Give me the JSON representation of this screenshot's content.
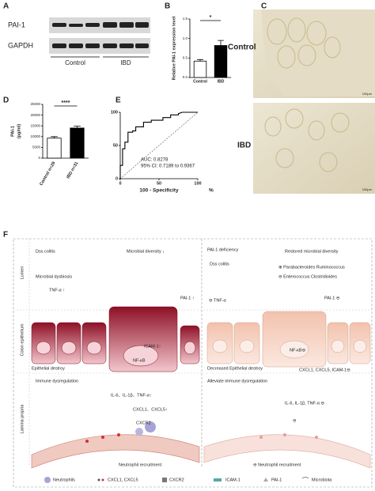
{
  "panel_a": {
    "label": "A",
    "rows": [
      "PAI-1",
      "GAPDH"
    ],
    "groups": [
      "Control",
      "IBD"
    ]
  },
  "panel_b": {
    "label": "B"
  },
  "panel_c": {
    "label": "C",
    "groups": [
      "Control",
      "IBD"
    ],
    "scale": "100μm"
  },
  "panel_d": {
    "label": "D"
  },
  "panel_e": {
    "label": "E"
  },
  "chart_data": [
    {
      "type": "bar",
      "ylabel": "Relative PAI-1 expression level",
      "categories": [
        "Control",
        "IBD"
      ],
      "values": [
        0.42,
        0.82
      ],
      "errors": [
        0.04,
        0.13
      ],
      "colors": [
        "#ffffff",
        "#000000"
      ],
      "ylim": [
        0,
        1.5
      ],
      "yticks": [
        {
          "value": 0,
          "label": "0.0"
        },
        {
          "value": 0.5,
          "label": "0.5"
        },
        {
          "value": 1,
          "label": "1.0"
        },
        {
          "value": 1.5,
          "label": "1.5"
        }
      ],
      "annotation": "*"
    },
    {
      "type": "bar",
      "ylabel": [
        "PAI-1",
        "(pg/ml)"
      ],
      "categories": [
        "Control n=29",
        "IBD n=31"
      ],
      "values": [
        9300,
        14000
      ],
      "errors": [
        700,
        900
      ],
      "colors": [
        "#ffffff",
        "#000000"
      ],
      "ylim": [
        0,
        25000
      ],
      "yticks": [
        0,
        5000,
        10000,
        15000,
        20000,
        25000
      ],
      "annotation": "****"
    },
    {
      "type": "line",
      "xlabel": "100 - Specificity",
      "xunit": "%",
      "x": [
        0,
        0,
        3,
        3,
        6,
        6,
        10,
        10,
        16,
        16,
        20,
        20,
        30,
        30,
        40,
        40,
        55,
        55,
        65,
        65,
        75,
        75,
        80,
        100
      ],
      "series": [
        {
          "color": "#000000",
          "values": [
            0,
            20,
            20,
            45,
            45,
            55,
            55,
            70,
            70,
            72,
            72,
            78,
            78,
            85,
            85,
            88,
            88,
            92,
            92,
            96,
            96,
            98,
            100,
            100
          ]
        }
      ],
      "xlim": [
        0,
        100
      ],
      "ylim": [
        0,
        100
      ],
      "xticks": [
        0,
        50,
        100
      ],
      "yticks": [
        0,
        50,
        100
      ],
      "annotations": [
        "AUC: 0.8278",
        "95% CI: 0.7189 to 0.9367"
      ]
    }
  ],
  "panel_f": {
    "label": "F",
    "zones": [
      "Lumen",
      "Colon epithelium",
      "Lamina propria"
    ],
    "left": [
      "Dss colitis",
      "Microbial diversity ↓",
      "Microbial dysbiosis",
      "TNF-α ↑",
      "PAI-1 ↑",
      "ICAM-1↑",
      "NF-κB",
      "Epithelial destroy",
      "Immune dysregulation",
      "IL-6、IL-1β、TNF-α↑",
      "CXCL1、CXCL5↑",
      "CXCR2",
      "Neutrophil recruitment"
    ],
    "right": [
      "PAI-1 deficiency",
      "Restored microbial diversity",
      "Dss colitis",
      "⊕ Parabacteroides  Ruminococcus",
      "⊖ Enterococcus  Clostridioides",
      "⊖ TNF-α",
      "PAI-1 ⊖",
      "NF-κB⊖",
      "Decreased Epithelial destroy",
      "CXCL1, CXCL5, ICAM-1⊖",
      "Alleviate immune dysregulation",
      "IL-6, IL-1β, TNF-α ⊖",
      "⊖",
      "⊖ Neutrophil recruitment"
    ],
    "legend": [
      "Neutrophils",
      "CXCL1, CXCL5",
      "CXCR2",
      "ICAM-1",
      "PAI-1",
      "Microbiota"
    ]
  }
}
